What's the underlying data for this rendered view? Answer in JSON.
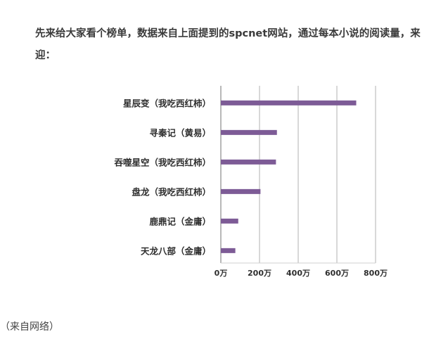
{
  "article": {
    "intro": "先来给大家看个榜单，数据来自上面提到的spcnet网站，通过每本小说的阅读量，来迎：",
    "caption": "（来自网络）"
  },
  "chart_data": {
    "type": "bar",
    "orientation": "horizontal",
    "categories": [
      "星辰变（我吃西红柿）",
      "寻秦记（黄易）",
      "吞噬星空（我吃西红柿）",
      "盘龙（我吃西红柿）",
      "鹿鼎记（金庸）",
      "天龙八部（金庸）"
    ],
    "values": [
      700,
      290,
      285,
      205,
      90,
      75
    ],
    "unit": "万",
    "xticks": [
      "0万",
      "200万",
      "400万",
      "600万",
      "800万"
    ],
    "xlim": [
      0,
      800
    ],
    "bar_color": "#7d5b96",
    "grid": true,
    "title": "",
    "xlabel": "",
    "ylabel": ""
  }
}
